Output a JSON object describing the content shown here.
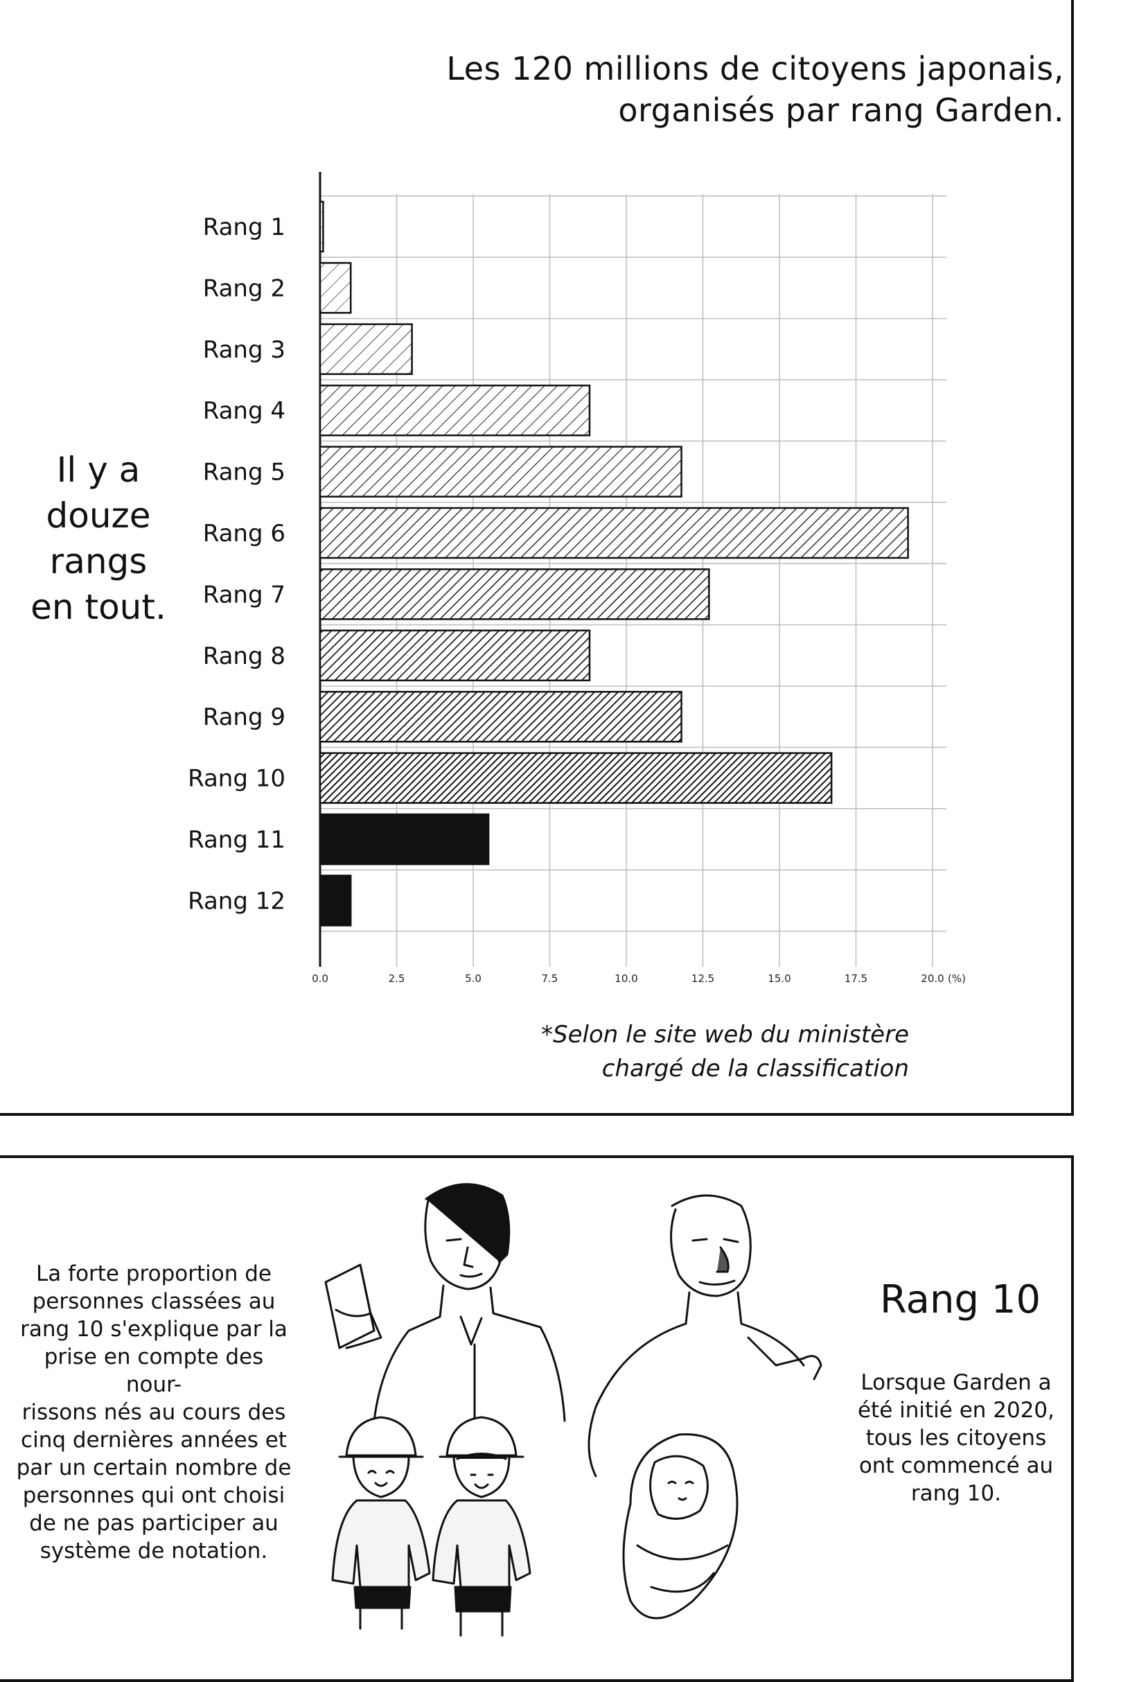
{
  "header": {
    "title_line1": "Les 120 millions de citoyens japonais,",
    "title_line2": "organisés par rang Garden."
  },
  "side_text": [
    "Il y a",
    "douze",
    "rangs",
    "en tout."
  ],
  "chart_data": {
    "type": "bar",
    "orientation": "horizontal",
    "categories": [
      "Rang 1",
      "Rang 2",
      "Rang 3",
      "Rang 4",
      "Rang 5",
      "Rang 6",
      "Rang 7",
      "Rang 8",
      "Rang 9",
      "Rang 10",
      "Rang 11",
      "Rang 12"
    ],
    "values": [
      0.1,
      1.0,
      3.0,
      8.8,
      11.8,
      19.2,
      12.7,
      8.8,
      11.8,
      16.7,
      5.5,
      1.0
    ],
    "xticks": [
      "0.0",
      "2.5",
      "5.0",
      "7.5",
      "10.0",
      "12.5",
      "15.0",
      "17.5",
      "20.0"
    ],
    "xunit": "(%)",
    "xlim": [
      0,
      20
    ],
    "grid": true,
    "bar_colors": [
      "#ffffff",
      "#f2f2f2",
      "#eeeeee",
      "#e8e8e8",
      "#dddddd",
      "#d0d0d0",
      "#c4c4c4",
      "#b8b8b8",
      "#888888",
      "#777777",
      "#111111",
      "#111111"
    ]
  },
  "source_note": {
    "line1": "*Selon le site web du ministère",
    "line2": "chargé de la classification"
  },
  "bottom_panel": {
    "left_paragraph": [
      "La forte proportion de",
      "personnes classées au",
      "rang 10 s'explique par la",
      "prise en compte des nour-",
      "rissons nés au cours des",
      "cinq dernières années et",
      "par un certain nombre de",
      "personnes qui ont choisi",
      "de ne pas participer au",
      "système de notation."
    ],
    "heading": "Rang 10",
    "right_paragraph": [
      "Lorsque Garden a",
      "été initié en 2020,",
      "tous les citoyens",
      "ont commencé au",
      "rang 10."
    ]
  }
}
